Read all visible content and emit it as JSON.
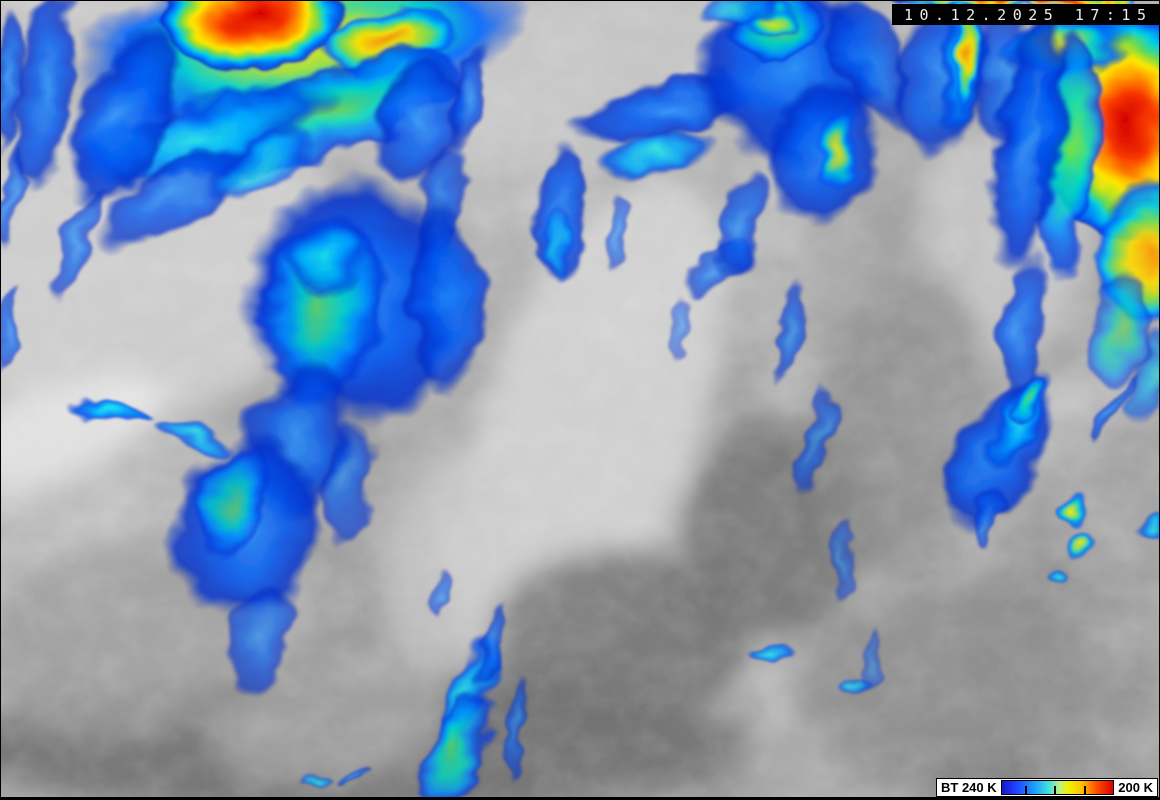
{
  "header": {
    "timestamp": "10.12.2025 17:15"
  },
  "legend": {
    "label_left": "BT 240 K",
    "label_right": "200 K",
    "gradient": [
      [
        0.0,
        "#1818c8"
      ],
      [
        0.12,
        "#2040ff"
      ],
      [
        0.3,
        "#20a0ff"
      ],
      [
        0.42,
        "#40e0e0"
      ],
      [
        0.52,
        "#c0f080"
      ],
      [
        0.6,
        "#f0f000"
      ],
      [
        0.72,
        "#ffc000"
      ],
      [
        0.85,
        "#ff5000"
      ],
      [
        1.0,
        "#dd0000"
      ]
    ],
    "ticks_pct": [
      21,
      47,
      74
    ]
  },
  "scene": {
    "base": [
      [
        0,
        "#b4b4b4"
      ],
      [
        0.45,
        "#9c9c9c"
      ],
      [
        1,
        "#808080"
      ]
    ],
    "palettes": {
      "red": [
        [
          0,
          "#d40000",
          1
        ],
        [
          0.3,
          "#f83800",
          1
        ],
        [
          0.46,
          "#ff9000",
          1
        ],
        [
          0.6,
          "#ffe800",
          1
        ],
        [
          0.71,
          "#70dc48",
          1
        ],
        [
          0.8,
          "#00d0e8",
          1
        ],
        [
          0.9,
          "#0070ff",
          1
        ],
        [
          0.97,
          "#0028c8",
          0.85
        ],
        [
          1,
          "#0028c8",
          0
        ]
      ],
      "orange": [
        [
          0,
          "#ff9000",
          1
        ],
        [
          0.35,
          "#ffe000",
          1
        ],
        [
          0.55,
          "#80dc48",
          1
        ],
        [
          0.72,
          "#00ccec",
          1
        ],
        [
          0.88,
          "#0060ff",
          0.95
        ],
        [
          1,
          "#0030cc",
          0
        ]
      ],
      "yellow": [
        [
          0,
          "#ffee00",
          1
        ],
        [
          0.32,
          "#a0e040",
          1
        ],
        [
          0.55,
          "#00d0d0",
          1
        ],
        [
          0.78,
          "#0068ff",
          0.95
        ],
        [
          1,
          "#0030cc",
          0
        ]
      ],
      "green": [
        [
          0,
          "#70e048",
          1
        ],
        [
          0.4,
          "#00dcc0",
          1
        ],
        [
          0.68,
          "#0090ff",
          1
        ],
        [
          0.9,
          "#0038dd",
          0.9
        ],
        [
          1,
          "#0030cc",
          0
        ]
      ],
      "cyan": [
        [
          0,
          "#20e8e8",
          1
        ],
        [
          0.45,
          "#00a8ff",
          1
        ],
        [
          0.78,
          "#0050e8",
          0.95
        ],
        [
          1,
          "#0030c0",
          0
        ]
      ],
      "blue": [
        [
          0,
          "#2090ff",
          0.95
        ],
        [
          0.5,
          "#0055f0",
          0.95
        ],
        [
          0.82,
          "#0030cc",
          0.9
        ],
        [
          1,
          "#0028b0",
          0
        ]
      ]
    },
    "gray_masses": [
      [
        140,
        260,
        190,
        160,
        -20,
        "#cfcfcf",
        0.9
      ],
      [
        240,
        60,
        120,
        60,
        0,
        "#c0c0c0",
        0.5
      ],
      [
        60,
        430,
        110,
        40,
        -20,
        "#eeeeee",
        0.8
      ],
      [
        40,
        445,
        90,
        55,
        -25,
        "#e0e0e0",
        0.7
      ],
      [
        580,
        70,
        180,
        80,
        -10,
        "#c8c8c8",
        0.8
      ],
      [
        680,
        180,
        80,
        50,
        -20,
        "#b0b0b0",
        0.6
      ],
      [
        590,
        425,
        110,
        260,
        20,
        "#d4d4d4",
        0.9
      ],
      [
        450,
        560,
        60,
        110,
        15,
        "#cccccc",
        0.7
      ],
      [
        775,
        530,
        90,
        110,
        0,
        "#737373",
        0.85
      ],
      [
        620,
        640,
        130,
        90,
        0,
        "#707070",
        0.8
      ],
      [
        350,
        750,
        400,
        70,
        0,
        "#6e6e6e",
        0.85
      ],
      [
        120,
        640,
        140,
        100,
        -10,
        "#9d9d9d",
        0.8
      ],
      [
        330,
        725,
        120,
        60,
        -8,
        "#b0b0b0",
        0.7
      ],
      [
        950,
        680,
        160,
        90,
        -5,
        "#8f8f8f",
        0.8
      ],
      [
        1000,
        240,
        90,
        120,
        0,
        "#c9c9c9",
        0.85
      ],
      [
        900,
        420,
        90,
        150,
        10,
        "#8a8a8a",
        0.7
      ],
      [
        870,
        250,
        60,
        90,
        0,
        "#9a9a9a",
        0.6
      ]
    ],
    "systems": [
      [
        300,
        40,
        230,
        85,
        -8,
        "yellow",
        0.95
      ],
      [
        250,
        15,
        95,
        55,
        -5,
        "red",
        1
      ],
      [
        385,
        40,
        70,
        32,
        -10,
        "orange",
        0.9
      ],
      [
        330,
        110,
        150,
        45,
        -18,
        "green",
        0.85
      ],
      [
        200,
        135,
        140,
        40,
        -15,
        "cyan",
        0.9
      ],
      [
        120,
        120,
        45,
        100,
        25,
        "blue",
        0.9
      ],
      [
        45,
        90,
        28,
        110,
        8,
        "blue",
        0.85
      ],
      [
        175,
        195,
        90,
        35,
        -30,
        "blue",
        0.8
      ],
      [
        260,
        165,
        60,
        25,
        -25,
        "cyan",
        0.7
      ],
      [
        420,
        120,
        45,
        65,
        20,
        "blue",
        0.85
      ],
      [
        470,
        95,
        18,
        60,
        15,
        "blue",
        0.8
      ],
      [
        440,
        210,
        25,
        70,
        12,
        "blue",
        0.75
      ],
      [
        355,
        300,
        115,
        125,
        0,
        "blue",
        0.95
      ],
      [
        320,
        310,
        65,
        100,
        8,
        "green",
        0.8
      ],
      [
        325,
        255,
        40,
        45,
        0,
        "cyan",
        0.8
      ],
      [
        445,
        300,
        38,
        105,
        -5,
        "blue",
        0.85
      ],
      [
        300,
        440,
        55,
        80,
        10,
        "blue",
        0.85
      ],
      [
        245,
        530,
        75,
        95,
        15,
        "blue",
        0.9
      ],
      [
        230,
        505,
        35,
        60,
        15,
        "green",
        0.7
      ],
      [
        108,
        412,
        42,
        9,
        12,
        "cyan",
        0.95
      ],
      [
        190,
        437,
        45,
        12,
        10,
        "cyan",
        0.8
      ],
      [
        350,
        480,
        25,
        60,
        10,
        "blue",
        0.7
      ],
      [
        260,
        640,
        30,
        60,
        15,
        "blue",
        0.7
      ],
      [
        665,
        110,
        95,
        28,
        -12,
        "blue",
        0.9
      ],
      [
        655,
        155,
        60,
        22,
        -8,
        "cyan",
        0.85
      ],
      [
        560,
        215,
        22,
        75,
        5,
        "blue",
        0.85
      ],
      [
        557,
        245,
        10,
        45,
        5,
        "cyan",
        0.6
      ],
      [
        615,
        235,
        12,
        45,
        8,
        "blue",
        0.6
      ],
      [
        720,
        265,
        45,
        18,
        -40,
        "blue",
        0.7
      ],
      [
        680,
        330,
        12,
        30,
        15,
        "blue",
        0.5
      ],
      [
        790,
        70,
        95,
        95,
        0,
        "blue",
        0.95
      ],
      [
        775,
        25,
        50,
        30,
        -10,
        "green",
        0.85
      ],
      [
        770,
        15,
        25,
        14,
        0,
        "yellow",
        0.8
      ],
      [
        825,
        150,
        55,
        75,
        12,
        "blue",
        0.9
      ],
      [
        838,
        152,
        22,
        40,
        10,
        "yellow",
        0.85
      ],
      [
        870,
        60,
        30,
        75,
        -25,
        "blue",
        0.8
      ],
      [
        745,
        225,
        22,
        55,
        18,
        "blue",
        0.75
      ],
      [
        790,
        330,
        14,
        55,
        8,
        "blue",
        0.7
      ],
      [
        815,
        440,
        12,
        55,
        8,
        "blue",
        0.65
      ],
      [
        845,
        560,
        10,
        45,
        10,
        "blue",
        0.55
      ],
      [
        870,
        665,
        9,
        35,
        12,
        "blue",
        0.5
      ],
      [
        735,
        5,
        40,
        12,
        0,
        "cyan",
        0.7
      ],
      [
        942,
        75,
        48,
        85,
        5,
        "blue",
        0.85
      ],
      [
        963,
        60,
        24,
        80,
        3,
        "cyan",
        0.9
      ],
      [
        966,
        50,
        14,
        65,
        3,
        "orange",
        0.95
      ],
      [
        1005,
        80,
        30,
        90,
        -8,
        "blue",
        0.8
      ],
      [
        1130,
        125,
        95,
        115,
        -5,
        "red",
        1
      ],
      [
        1150,
        255,
        55,
        75,
        5,
        "orange",
        0.9
      ],
      [
        1065,
        45,
        70,
        28,
        -8,
        "yellow",
        0.9
      ],
      [
        1070,
        150,
        28,
        125,
        4,
        "green",
        0.85
      ],
      [
        1030,
        140,
        35,
        140,
        6,
        "blue",
        0.9
      ],
      [
        1025,
        330,
        22,
        80,
        12,
        "blue",
        0.8
      ],
      [
        1120,
        330,
        30,
        60,
        10,
        "green",
        0.6
      ],
      [
        1150,
        380,
        20,
        50,
        10,
        "cyan",
        0.6
      ],
      [
        1035,
        -2,
        150,
        8,
        0,
        "red",
        0.95
      ],
      [
        1000,
        455,
        42,
        85,
        28,
        "blue",
        0.9
      ],
      [
        1020,
        420,
        20,
        60,
        25,
        "cyan",
        0.9
      ],
      [
        1028,
        398,
        12,
        30,
        22,
        "green",
        0.8
      ],
      [
        990,
        520,
        10,
        35,
        18,
        "blue",
        0.7
      ],
      [
        1115,
        412,
        9,
        38,
        30,
        "blue",
        0.75
      ],
      [
        1078,
        514,
        17,
        15,
        0,
        "yellow",
        0.95
      ],
      [
        1083,
        547,
        15,
        14,
        0,
        "yellow",
        0.9
      ],
      [
        1070,
        578,
        9,
        7,
        0,
        "cyan",
        0.8
      ],
      [
        1152,
        525,
        13,
        11,
        0,
        "cyan",
        0.8
      ],
      [
        470,
        705,
        20,
        75,
        18,
        "cyan",
        0.85
      ],
      [
        458,
        755,
        28,
        65,
        30,
        "green",
        0.8
      ],
      [
        492,
        645,
        10,
        45,
        15,
        "blue",
        0.7
      ],
      [
        515,
        725,
        9,
        55,
        8,
        "blue",
        0.65
      ],
      [
        440,
        600,
        10,
        30,
        15,
        "blue",
        0.6
      ],
      [
        315,
        785,
        20,
        6,
        -18,
        "cyan",
        0.7
      ],
      [
        355,
        778,
        18,
        5,
        -15,
        "blue",
        0.7
      ],
      [
        770,
        655,
        28,
        8,
        -12,
        "cyan",
        0.8
      ],
      [
        855,
        690,
        13,
        10,
        0,
        "cyan",
        0.7
      ],
      [
        8,
        80,
        16,
        75,
        5,
        "blue",
        0.8
      ],
      [
        12,
        200,
        12,
        55,
        8,
        "blue",
        0.7
      ],
      [
        6,
        330,
        10,
        45,
        5,
        "blue",
        0.7
      ],
      [
        75,
        245,
        14,
        60,
        18,
        "blue",
        0.7
      ]
    ]
  }
}
